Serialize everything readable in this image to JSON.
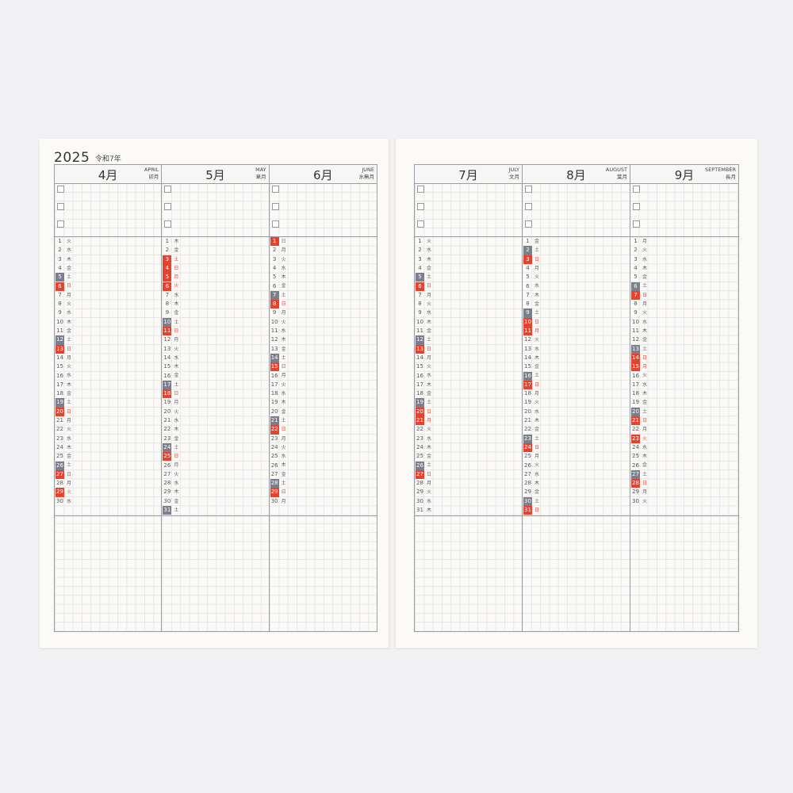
{
  "left_page": {
    "year": "2025",
    "era": "令和7年",
    "months": [
      {
        "name": "4月",
        "en": "APRIL",
        "jp": "卯月",
        "weekdays": "火水木金土日月火水木金土日月火水木金土日月火水木金土日月火水",
        "holidays": [
          29
        ]
      },
      {
        "name": "5月",
        "en": "MAY",
        "jp": "皐月",
        "weekdays": "木金土日月火水木金土日月火水木金土日月火水木金土日月火水木金土",
        "holidays": [
          3,
          4,
          5,
          6
        ]
      },
      {
        "name": "6月",
        "en": "JUNE",
        "jp": "水無月",
        "weekdays": "日月火水木金土日月火水木金土日月火水木金土日月火水木金土日月",
        "holidays": []
      }
    ]
  },
  "right_page": {
    "months": [
      {
        "name": "7月",
        "en": "JULY",
        "jp": "文月",
        "weekdays": "火水木金土日月火水木金土日月火水木金土日月火水木金土日月火水木",
        "holidays": [
          21
        ]
      },
      {
        "name": "8月",
        "en": "AUGUST",
        "jp": "葉月",
        "weekdays": "金土日月火水木金土日月火水木金土日月火水木金土日月火水木金土日",
        "holidays": [
          11
        ]
      },
      {
        "name": "9月",
        "en": "SEPTEMBER",
        "jp": "長月",
        "weekdays": "月火水木金土日月火水木金土日月火水木金土日月火水木金土日月火",
        "holidays": [
          15,
          23
        ]
      }
    ]
  },
  "colors": {
    "saturday": "#7b7e8b",
    "sunday_holiday": "#e8412c"
  }
}
